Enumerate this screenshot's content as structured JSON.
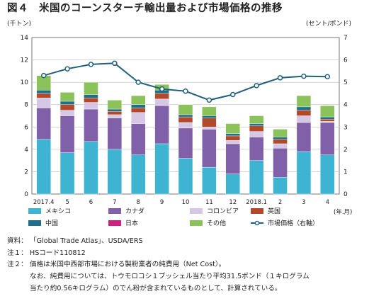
{
  "figure": {
    "title": "図４　米国のコーンスターチ輸出量および市場価格の推移",
    "left_unit": "(千トン)",
    "right_unit": "(セント/ポンド)",
    "x_unit": "(年.月)"
  },
  "chart_data": {
    "type": "bar",
    "stacked": true,
    "categories": [
      "2017.4",
      "5",
      "6",
      "7",
      "8",
      "9",
      "10",
      "11",
      "12",
      "2018.1",
      "2",
      "3",
      "4"
    ],
    "ylim_left": [
      0,
      14
    ],
    "yticks_left": [
      "0",
      "2",
      "4",
      "6",
      "8",
      "10",
      "12",
      "14"
    ],
    "ylim_right": [
      0,
      7
    ],
    "yticks_right": [
      "0",
      "1",
      "2",
      "3",
      "4",
      "5",
      "6",
      "7"
    ],
    "grid": true,
    "legend_position": "bottom",
    "series": [
      {
        "name": "メキシコ",
        "color": "#3fb4d2",
        "axis": "left",
        "values": [
          4.9,
          3.7,
          4.7,
          4.0,
          3.5,
          4.5,
          3.2,
          2.4,
          1.8,
          3.0,
          1.5,
          3.8,
          3.5
        ]
      },
      {
        "name": "カナダ",
        "color": "#8060a8",
        "axis": "left",
        "values": [
          2.8,
          3.3,
          2.9,
          2.8,
          2.8,
          3.4,
          2.7,
          3.4,
          2.7,
          2.1,
          2.6,
          2.6,
          2.9
        ]
      },
      {
        "name": "コロンビア",
        "color": "#d6c8e4",
        "axis": "left",
        "values": [
          0.9,
          0.5,
          0.6,
          0.3,
          1.0,
          0.6,
          0.5,
          0.2,
          0.3,
          0.5,
          0.4,
          0.6,
          0.1
        ]
      },
      {
        "name": "英国",
        "color": "#b2492b",
        "axis": "left",
        "values": [
          0.4,
          0.5,
          0.4,
          0.3,
          0.4,
          0.5,
          0.5,
          0.8,
          0.4,
          0.5,
          0.4,
          0.5,
          0.2
        ]
      },
      {
        "name": "中国",
        "color": "#1f6f8b",
        "axis": "left",
        "values": [
          0.3,
          0.3,
          0.3,
          0.2,
          0.3,
          0.3,
          0.2,
          0.2,
          0.2,
          0.2,
          0.2,
          0.3,
          0.2
        ]
      },
      {
        "name": "日本",
        "color": "#d21f7f",
        "axis": "left",
        "values": [
          0.0,
          0.0,
          0.0,
          0.0,
          0.0,
          0.0,
          0.0,
          0.0,
          0.0,
          0.0,
          0.0,
          0.0,
          0.0
        ]
      },
      {
        "name": "その他",
        "color": "#8cc25a",
        "axis": "left",
        "values": [
          1.3,
          0.8,
          1.1,
          0.8,
          0.8,
          0.5,
          0.9,
          0.8,
          0.9,
          0.7,
          0.7,
          1.0,
          1.0
        ]
      },
      {
        "name": "市場価格（右軸）",
        "type": "line",
        "color": "#21607c",
        "axis": "right",
        "values": [
          5.3,
          5.6,
          5.8,
          5.85,
          5.0,
          4.7,
          4.6,
          4.2,
          4.45,
          4.85,
          5.2,
          5.27,
          5.25
        ]
      }
    ]
  },
  "notes": [
    {
      "label": "資料：",
      "lines": [
        "「Global Trade Atlas」、USDA/ERS"
      ]
    },
    {
      "label": "注１：",
      "lines": [
        "HSコード110812"
      ]
    },
    {
      "label": "注２：",
      "lines": [
        "価格は米国中西部市場における製粉業者の純費用（Net Cost）。",
        "なお、純費用については、トウモロコシ１ブッシェル当たり平均31.5ポンド（１キログラム",
        "当たり約0.56キログラム）のでん粉が含まれているものとして、計算されている。"
      ]
    }
  ]
}
